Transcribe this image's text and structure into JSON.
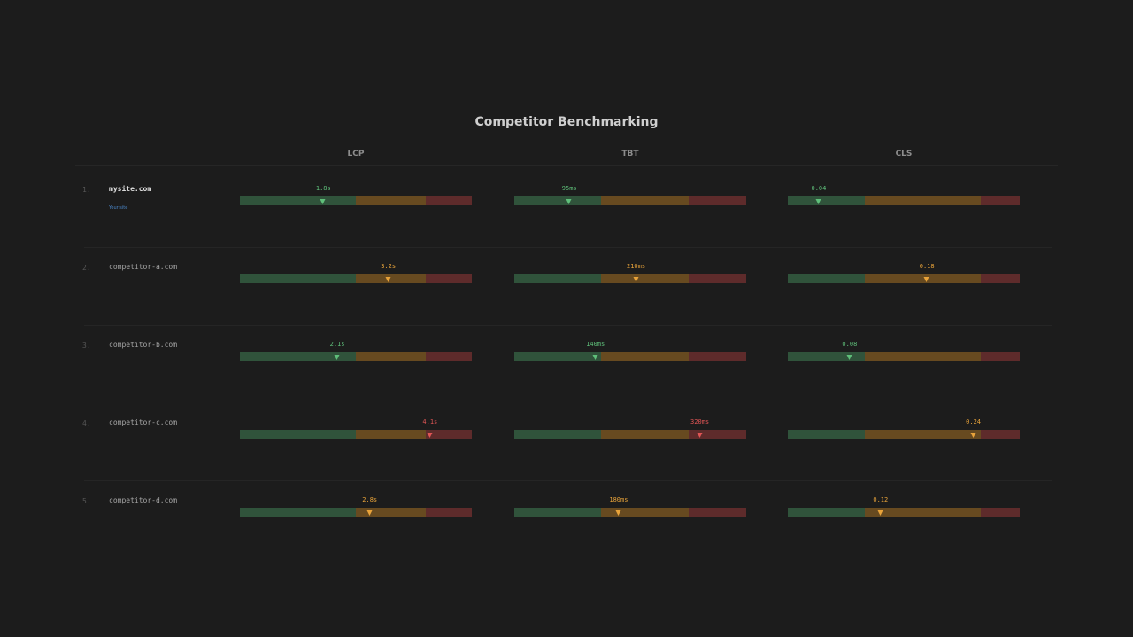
{
  "title": "Competitor Benchmarking",
  "colors": {
    "good_bar": "#30533b",
    "mid_bar": "#674a20",
    "bad_bar": "#5e2b2b",
    "good_text": "#5fbf7a",
    "mid_text": "#e8a33a",
    "bad_text": "#e05555",
    "your_site": "#4a86c8"
  },
  "metrics": [
    {
      "name": "LCP",
      "max": 5,
      "good": 2.5,
      "poor": 4.0
    },
    {
      "name": "TBT",
      "max": 400,
      "good": 150,
      "poor": 300
    },
    {
      "name": "CLS",
      "max": 0.3,
      "good": 0.1,
      "poor": 0.25
    }
  ],
  "rows": [
    {
      "rank": "1.",
      "site": "mysite.com",
      "tag": "Your site",
      "values": [
        {
          "label": "1.8s",
          "v": 1.8
        },
        {
          "label": "95ms",
          "v": 95
        },
        {
          "label": "0.04",
          "v": 0.04
        }
      ]
    },
    {
      "rank": "2.",
      "site": "competitor-a.com",
      "values": [
        {
          "label": "3.2s",
          "v": 3.2
        },
        {
          "label": "210ms",
          "v": 210
        },
        {
          "label": "0.18",
          "v": 0.18
        }
      ]
    },
    {
      "rank": "3.",
      "site": "competitor-b.com",
      "values": [
        {
          "label": "2.1s",
          "v": 2.1
        },
        {
          "label": "140ms",
          "v": 140
        },
        {
          "label": "0.08",
          "v": 0.08
        }
      ]
    },
    {
      "rank": "4.",
      "site": "competitor-c.com",
      "values": [
        {
          "label": "4.1s",
          "v": 4.1
        },
        {
          "label": "320ms",
          "v": 320
        },
        {
          "label": "0.24",
          "v": 0.24
        }
      ]
    },
    {
      "rank": "5.",
      "site": "competitor-d.com",
      "values": [
        {
          "label": "2.8s",
          "v": 2.8
        },
        {
          "label": "180ms",
          "v": 180
        },
        {
          "label": "0.12",
          "v": 0.12
        }
      ]
    }
  ]
}
